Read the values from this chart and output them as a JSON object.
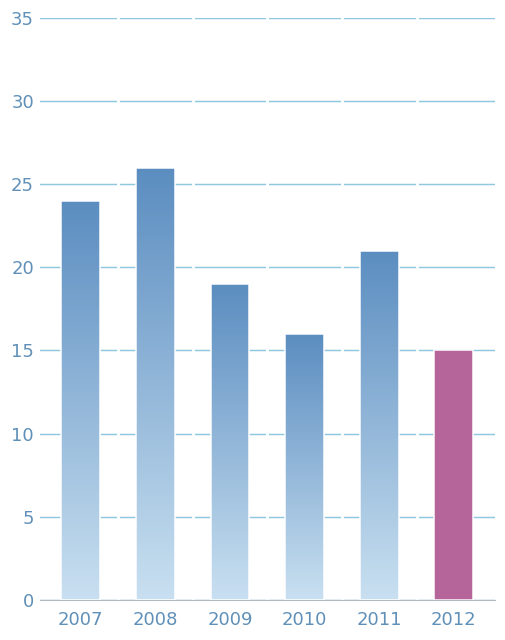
{
  "categories": [
    "2007",
    "2008",
    "2009",
    "2010",
    "2011",
    "2012"
  ],
  "values": [
    24,
    26,
    19,
    16,
    21,
    15
  ],
  "blue_top": "#5b8dc0",
  "blue_bottom": "#c8dff0",
  "pink_color": "#b5659a",
  "ylim": [
    0,
    35
  ],
  "yticks": [
    0,
    5,
    10,
    15,
    20,
    25,
    30,
    35
  ],
  "grid_color": "#90c8e0",
  "plot_bg_color": "#ffffff",
  "fig_bg_color": "#ffffff",
  "bar_width": 0.52,
  "tick_label_fontsize": 13,
  "tick_label_color": "#6090b8",
  "separator_color": "#e0e8f0",
  "bottom_spine_color": "#b0b8c0"
}
